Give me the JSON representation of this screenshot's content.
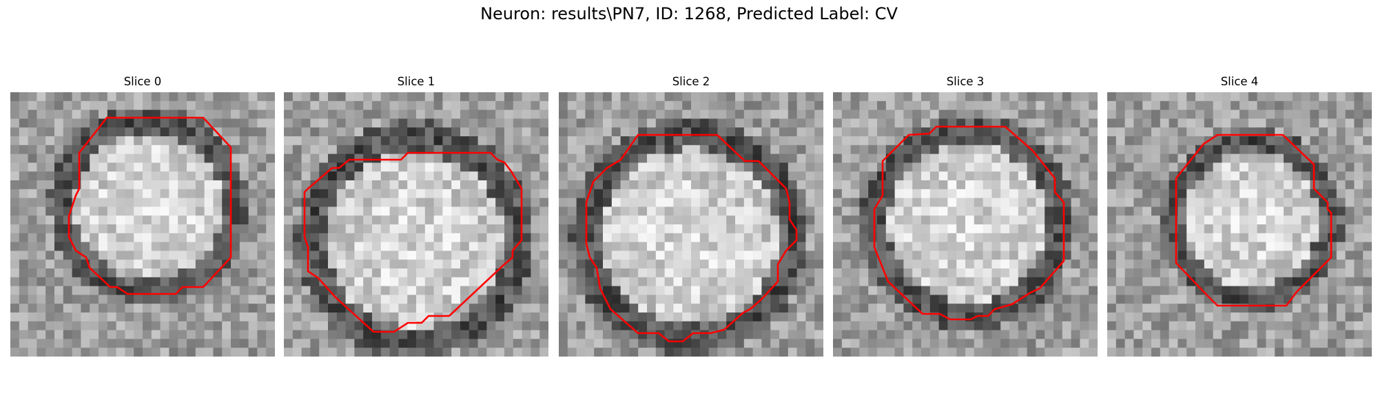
{
  "figure": {
    "title": "Neuron: results\\PN7, ID: 1268, Predicted Label: CV"
  },
  "colors": {
    "contour": "#ff0000"
  },
  "panels": [
    {
      "title": "Slice 0"
    },
    {
      "title": "Slice 1"
    },
    {
      "title": "Slice 2"
    },
    {
      "title": "Slice 3"
    },
    {
      "title": "Slice 4"
    }
  ]
}
